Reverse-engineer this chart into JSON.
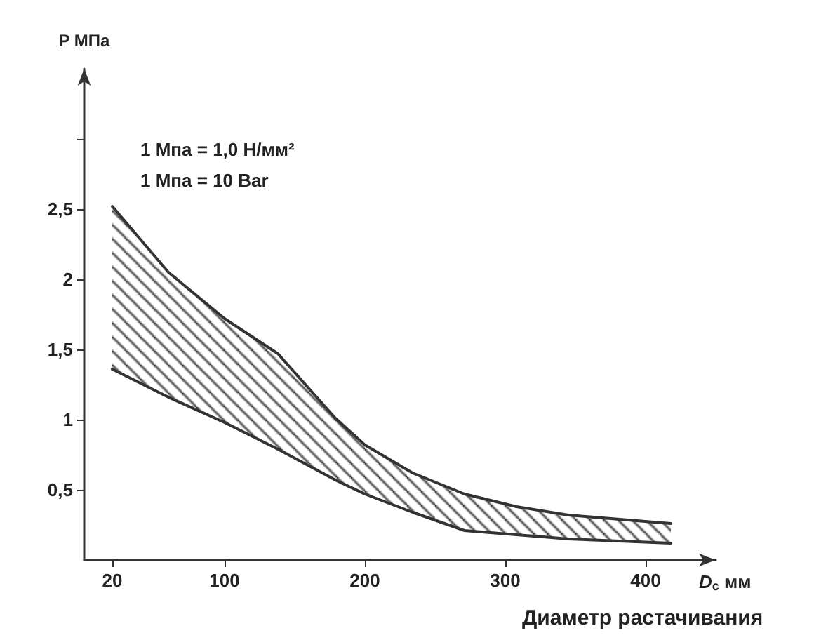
{
  "chart_data": {
    "type": "line",
    "ylabel": "P МПа",
    "xlabel": "D$_{c}$ мм",
    "annotations": [
      "1 Мпа = 1,0 Н/мм²",
      "1 Мпа = 10 Bar",
      "Диаметр растачивания"
    ],
    "xlim": [
      0,
      450
    ],
    "xticks": [
      20,
      100,
      200,
      300,
      400
    ],
    "ylim": [
      0,
      3.5
    ],
    "yticks": [
      {
        "value": 0.5,
        "label": "0,5"
      },
      1,
      {
        "value": 1.5,
        "label": "1,5"
      },
      2,
      {
        "value": 2.5,
        "label": "2,5"
      },
      {
        "value": 3,
        "label": null
      }
    ],
    "grid": false,
    "marker": "none",
    "line_style": "solid",
    "series": [
      {
        "color": "#333333",
        "x": [
          20,
          60,
          100,
          138,
          179,
          200,
          234,
          271,
          308,
          345,
          418
        ],
        "values": [
          1.36,
          1.16,
          0.98,
          0.79,
          0.57,
          0.47,
          0.34,
          0.21,
          0.18,
          0.15,
          0.12
        ]
      },
      {
        "color": "#333333",
        "x": [
          20,
          60,
          100,
          138,
          179,
          200,
          234,
          271,
          308,
          345,
          418
        ],
        "values": [
          2.52,
          2.05,
          1.72,
          1.47,
          1.01,
          0.82,
          0.62,
          0.47,
          0.38,
          0.32,
          0.26
        ],
        "lower": [
          1.36,
          1.16,
          0.98,
          0.79,
          0.57,
          0.47,
          0.34,
          0.21,
          0.18,
          0.15,
          0.12
        ],
        "upper": [
          2.52,
          2.05,
          1.72,
          1.47,
          1.01,
          0.82,
          0.62,
          0.47,
          0.38,
          0.32,
          0.26
        ]
      }
    ]
  }
}
